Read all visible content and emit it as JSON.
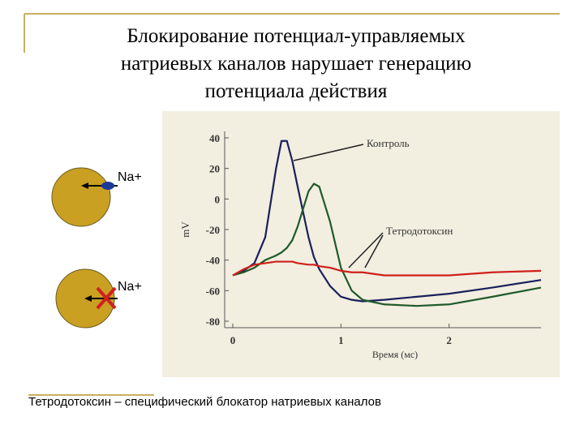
{
  "title": [
    "Блокирование потенциал-управляемых",
    "натриевых каналов нарушает генерацию",
    "потенциала действия"
  ],
  "cells": [
    {
      "label": "Na+"
    },
    {
      "label": "Na+"
    }
  ],
  "caption": "Тетродотоксин – специфический блокатор натриевых каналов",
  "chart_data": {
    "type": "line",
    "x_label": "Время (мс)",
    "y_label": "mV",
    "annotations": [
      "Контроль",
      "Тетродотоксин"
    ],
    "x": [
      0,
      0.1,
      0.2,
      0.3,
      0.4,
      0.45,
      0.5,
      0.55,
      0.6,
      0.7,
      0.75,
      0.8,
      0.9,
      1.0,
      1.1,
      1.2,
      1.4,
      1.7,
      2.0,
      2.4,
      2.85
    ],
    "series": [
      {
        "color": "#1a1f5c",
        "values": [
          -50,
          -47,
          -42,
          -25,
          20,
          38,
          38,
          25,
          8,
          -25,
          -38,
          -46,
          -57,
          -64,
          -66,
          -67,
          -66,
          -64,
          -62,
          -58,
          -53
        ]
      },
      {
        "color": "#1f5a2a",
        "values": [
          -50,
          -48,
          -45,
          -40,
          -37,
          -35,
          -32,
          -27,
          -18,
          5,
          10,
          8,
          -15,
          -45,
          -60,
          -66,
          -69,
          -70,
          -69,
          -64,
          -58
        ]
      },
      {
        "color": "#d0201a",
        "values": [
          -50,
          -46,
          -43,
          -42,
          -41,
          -41,
          -41,
          -41,
          -42,
          -43,
          -43,
          -44,
          -45,
          -47,
          -48,
          -48,
          -50,
          -50,
          -50,
          -48,
          -47
        ]
      }
    ],
    "xlim": [
      0,
      2.85
    ],
    "xticks": [
      0,
      1,
      2
    ],
    "ylim": [
      -80,
      40
    ],
    "yticks": [
      40,
      20,
      0,
      -20,
      -40,
      -60,
      -80
    ]
  }
}
